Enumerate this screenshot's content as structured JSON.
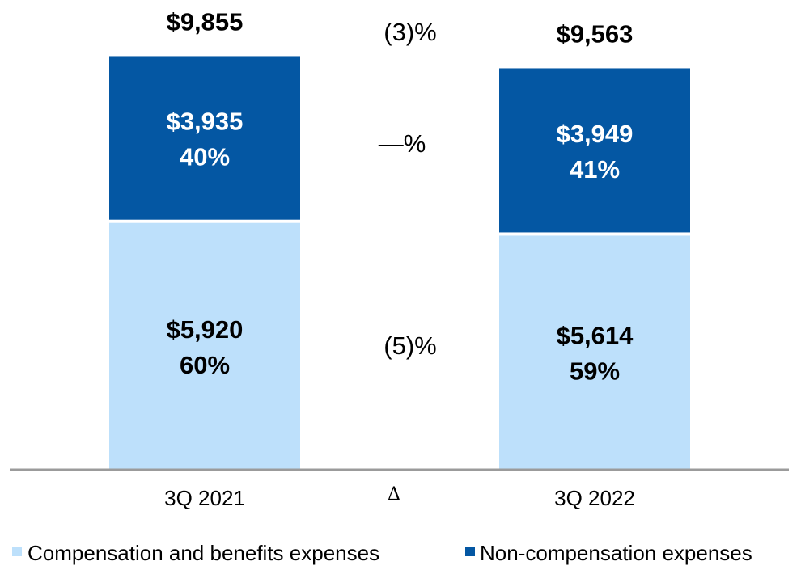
{
  "chart_data": {
    "type": "bar",
    "stacked": true,
    "categories": [
      "3Q 2021",
      "3Q 2022"
    ],
    "series": [
      {
        "name": "Compensation and benefits expenses",
        "values": [
          5920,
          5614
        ],
        "value_labels": [
          "$5,920",
          "$5,614"
        ],
        "pct_labels": [
          "60%",
          "59%"
        ],
        "color": "#bde0fb"
      },
      {
        "name": "Non-compensation expenses",
        "values": [
          3935,
          3949
        ],
        "value_labels": [
          "$3,935",
          "$3,949"
        ],
        "pct_labels": [
          "40%",
          "41%"
        ],
        "color": "#0457a3"
      }
    ],
    "totals": [
      9855,
      9563
    ],
    "total_labels": [
      "$9,855",
      "$9,563"
    ],
    "delta_header": "Δ",
    "deltas": {
      "total": "(3)%",
      "non_compensation": "—%",
      "compensation": "(5)%"
    },
    "ylim": [
      0,
      10000
    ],
    "legend_position": "bottom",
    "grid": false
  },
  "colors": {
    "axis": "#9b9b9b",
    "text": "#000000",
    "text_on_dark": "#ffffff"
  }
}
